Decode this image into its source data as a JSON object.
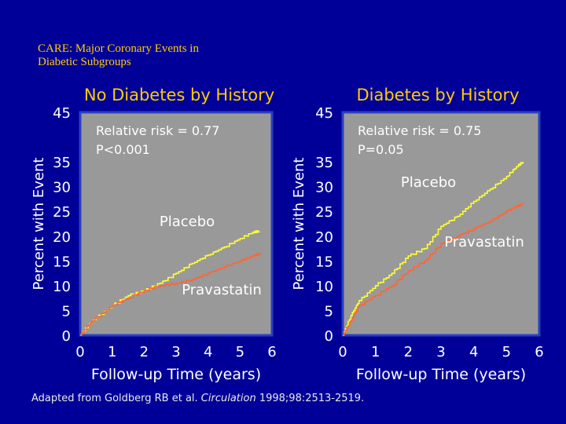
{
  "slide": {
    "title": "CARE:  Major Coronary Events in\nDiabetic Subgroups",
    "citation_prefix": "Adapted from Goldberg RB et al. ",
    "citation_journal": "Circulation",
    "citation_suffix": " 1998;98:2513-2519."
  },
  "colors": {
    "background": "#000099",
    "plot_bg": "#999999",
    "plot_border": "#2a3fc0",
    "title": "#ffcc00",
    "text": "#ffffff",
    "placebo": "#ffff33",
    "pravastatin": "#ff6633"
  },
  "chart_data": [
    {
      "type": "line",
      "title": "No Diabetes by History",
      "xlabel": "Follow-up Time (years)",
      "ylabel": "Percent with Event",
      "xlim": [
        0,
        6
      ],
      "ylim": [
        0,
        45
      ],
      "xticks": [
        0,
        1,
        2,
        3,
        4,
        5,
        6
      ],
      "yticks": [
        0,
        5,
        10,
        15,
        20,
        25,
        30,
        35,
        45
      ],
      "annotation_line1": "Relative risk = 0.77",
      "annotation_line2": "P<0.001",
      "series": [
        {
          "name": "Placebo",
          "x": [
            0,
            0.25,
            0.5,
            1,
            1.5,
            2,
            2.5,
            3,
            3.5,
            4,
            4.5,
            5,
            5.4,
            5.6
          ],
          "y": [
            0,
            2,
            3.5,
            6,
            8,
            9,
            10.5,
            12.5,
            14.5,
            16.2,
            17.8,
            19.5,
            20.8,
            21
          ]
        },
        {
          "name": "Pravastatin",
          "x": [
            0,
            0.25,
            0.5,
            1,
            1.5,
            2,
            2.5,
            3,
            3.5,
            4,
            4.5,
            5,
            5.4,
            5.65
          ],
          "y": [
            0,
            2,
            3.5,
            6,
            7.5,
            9,
            10,
            10.5,
            11.2,
            12.5,
            13.8,
            15,
            16,
            16.5
          ]
        }
      ]
    },
    {
      "type": "line",
      "title": "Diabetes by History",
      "xlabel": "Follow-up Time (years)",
      "ylabel": "Percent with Event",
      "xlim": [
        0,
        6
      ],
      "ylim": [
        0,
        45
      ],
      "xticks": [
        0,
        1,
        2,
        3,
        4,
        5,
        6
      ],
      "yticks": [
        0,
        5,
        10,
        15,
        20,
        25,
        30,
        35,
        45
      ],
      "annotation_line1": "Relative risk = 0.75",
      "annotation_line2": "P=0.05",
      "series": [
        {
          "name": "Placebo",
          "x": [
            0,
            0.25,
            0.5,
            1,
            1.5,
            2,
            2.5,
            3,
            3.5,
            4,
            4.5,
            5,
            5.3,
            5.5
          ],
          "y": [
            0,
            4,
            7,
            10,
            12.5,
            16,
            17.5,
            22,
            24,
            27,
            29.5,
            32,
            34,
            35
          ]
        },
        {
          "name": "Pravastatin",
          "x": [
            0,
            0.25,
            0.5,
            1,
            1.5,
            2,
            2.5,
            3,
            3.5,
            4,
            4.5,
            5,
            5.3,
            5.5
          ],
          "y": [
            0,
            3,
            6,
            8,
            10,
            13,
            15,
            18.5,
            20,
            21.5,
            23,
            25,
            26,
            26.5
          ]
        }
      ]
    }
  ]
}
